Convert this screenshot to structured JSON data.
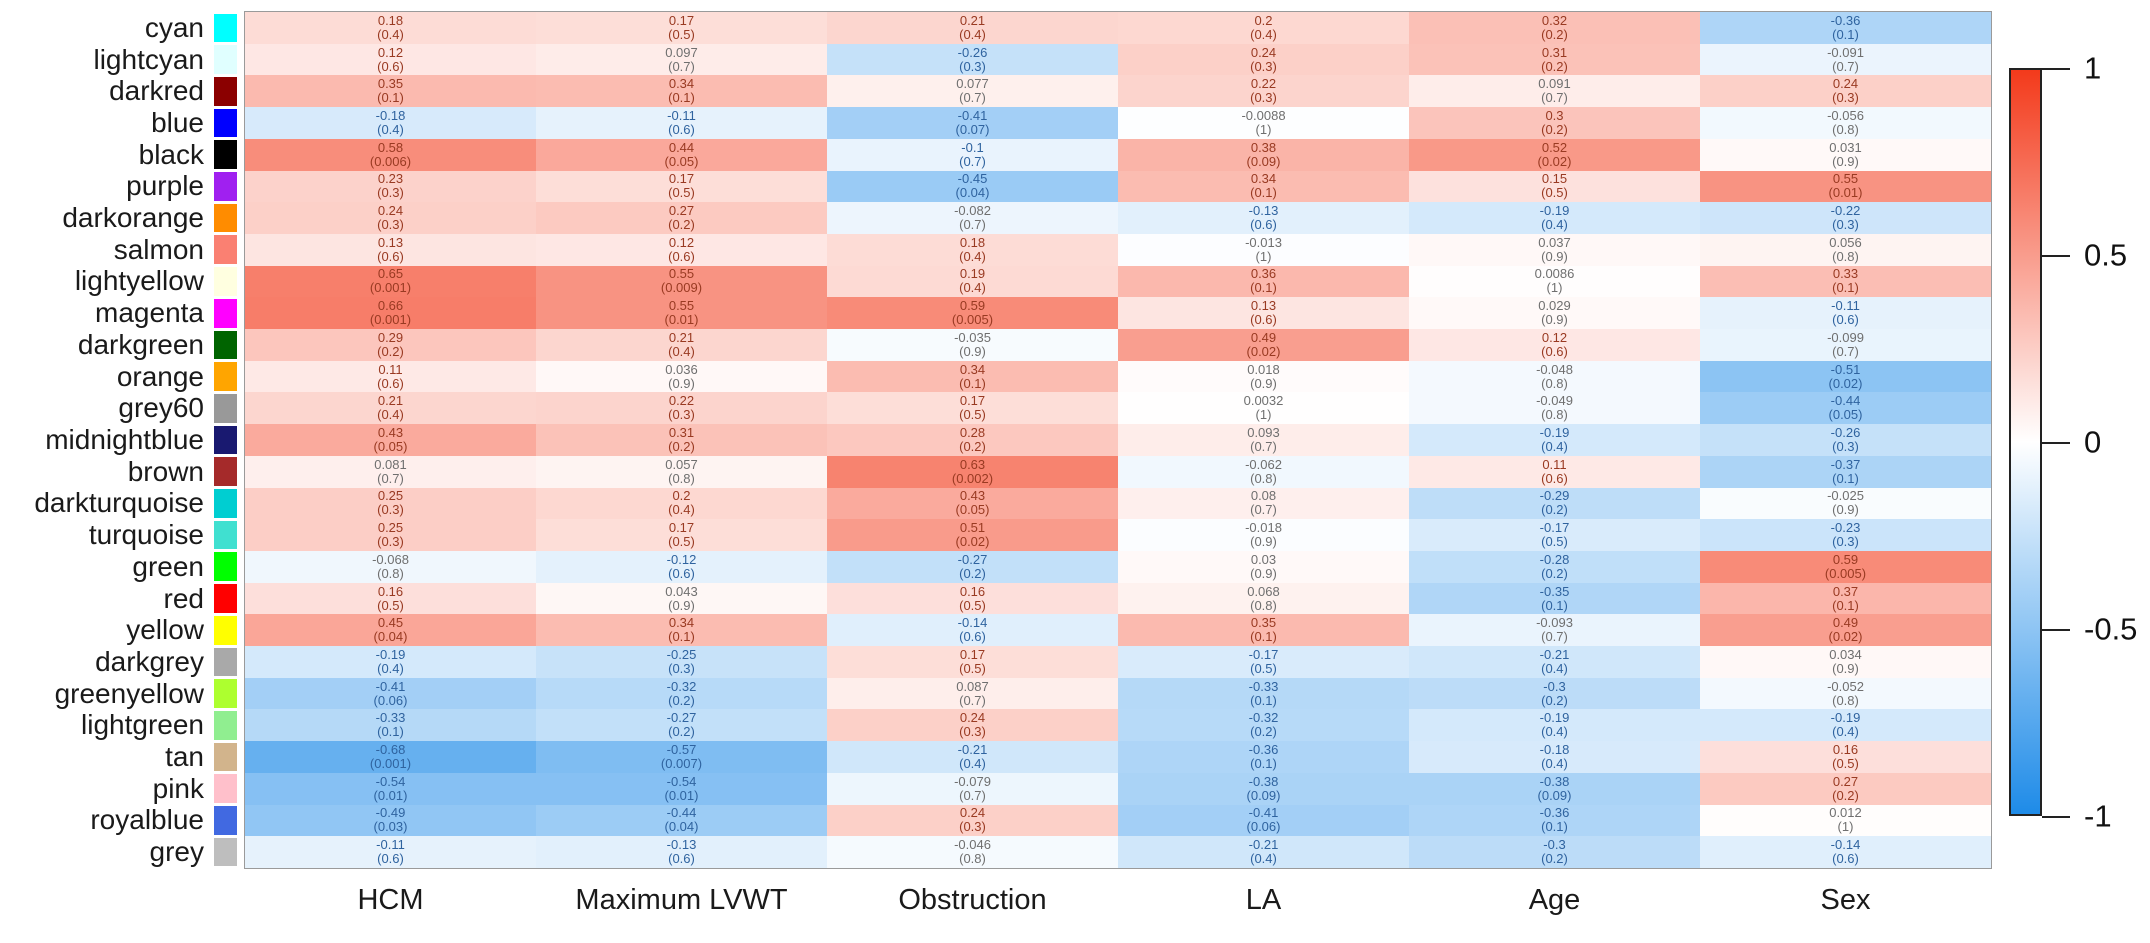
{
  "chart_data": {
    "type": "heatmap",
    "title": "",
    "xlabel": "",
    "ylabel": "",
    "columns": [
      "HCM",
      "Maximum LVWT",
      "Obstruction",
      "LA",
      "Age",
      "Sex"
    ],
    "legend": {
      "ticks": [
        "1",
        "0.5",
        "0",
        "-0.5",
        "-1"
      ],
      "tick_values": [
        1,
        0.5,
        0,
        -0.5,
        -1
      ],
      "position": "right"
    },
    "colorscale": {
      "max_color": "#F33A1B",
      "zero_color": "#FFFFFF",
      "min_color": "#1E8BE8",
      "range": [
        -1,
        1
      ]
    },
    "cell_text_colors": {
      "positive": "#993A22",
      "negative": "#2F639F",
      "near_zero": "#6F6F6F"
    },
    "rows": [
      {
        "module": "cyan",
        "swatch": "#00FFFF",
        "corr": [
          "0.18",
          "0.17",
          "0.21",
          "0.2",
          "0.32",
          "-0.36"
        ],
        "pval": [
          "(0.4)",
          "(0.5)",
          "(0.4)",
          "(0.4)",
          "(0.2)",
          "(0.1)"
        ]
      },
      {
        "module": "lightcyan",
        "swatch": "#E0FFFF",
        "corr": [
          "0.12",
          "0.097",
          "-0.26",
          "0.24",
          "0.31",
          "-0.091"
        ],
        "pval": [
          "(0.6)",
          "(0.7)",
          "(0.3)",
          "(0.3)",
          "(0.2)",
          "(0.7)"
        ]
      },
      {
        "module": "darkred",
        "swatch": "#8B0000",
        "corr": [
          "0.35",
          "0.34",
          "0.077",
          "0.22",
          "0.091",
          "0.24"
        ],
        "pval": [
          "(0.1)",
          "(0.1)",
          "(0.7)",
          "(0.3)",
          "(0.7)",
          "(0.3)"
        ]
      },
      {
        "module": "blue",
        "swatch": "#0000FF",
        "corr": [
          "-0.18",
          "-0.11",
          "-0.41",
          "-0.0088",
          "0.3",
          "-0.056"
        ],
        "pval": [
          "(0.4)",
          "(0.6)",
          "(0.07)",
          "(1)",
          "(0.2)",
          "(0.8)"
        ]
      },
      {
        "module": "black",
        "swatch": "#000000",
        "corr": [
          "0.58",
          "0.44",
          "-0.1",
          "0.38",
          "0.52",
          "0.031"
        ],
        "pval": [
          "(0.006)",
          "(0.05)",
          "(0.7)",
          "(0.09)",
          "(0.02)",
          "(0.9)"
        ]
      },
      {
        "module": "purple",
        "swatch": "#A020F0",
        "corr": [
          "0.23",
          "0.17",
          "-0.45",
          "0.34",
          "0.15",
          "0.55"
        ],
        "pval": [
          "(0.3)",
          "(0.5)",
          "(0.04)",
          "(0.1)",
          "(0.5)",
          "(0.01)"
        ]
      },
      {
        "module": "darkorange",
        "swatch": "#FF8C00",
        "corr": [
          "0.24",
          "0.27",
          "-0.082",
          "-0.13",
          "-0.19",
          "-0.22"
        ],
        "pval": [
          "(0.3)",
          "(0.2)",
          "(0.7)",
          "(0.6)",
          "(0.4)",
          "(0.3)"
        ]
      },
      {
        "module": "salmon",
        "swatch": "#FA8072",
        "corr": [
          "0.13",
          "0.12",
          "0.18",
          "-0.013",
          "0.037",
          "0.056"
        ],
        "pval": [
          "(0.6)",
          "(0.6)",
          "(0.4)",
          "(1)",
          "(0.9)",
          "(0.8)"
        ]
      },
      {
        "module": "lightyellow",
        "swatch": "#FFFFE0",
        "corr": [
          "0.65",
          "0.55",
          "0.19",
          "0.36",
          "0.0086",
          "0.33"
        ],
        "pval": [
          "(0.001)",
          "(0.009)",
          "(0.4)",
          "(0.1)",
          "(1)",
          "(0.1)"
        ]
      },
      {
        "module": "magenta",
        "swatch": "#FF00FF",
        "corr": [
          "0.66",
          "0.55",
          "0.59",
          "0.13",
          "0.029",
          "-0.11"
        ],
        "pval": [
          "(0.001)",
          "(0.01)",
          "(0.005)",
          "(0.6)",
          "(0.9)",
          "(0.6)"
        ]
      },
      {
        "module": "darkgreen",
        "swatch": "#006400",
        "corr": [
          "0.29",
          "0.21",
          "-0.035",
          "0.49",
          "0.12",
          "-0.099"
        ],
        "pval": [
          "(0.2)",
          "(0.4)",
          "(0.9)",
          "(0.02)",
          "(0.6)",
          "(0.7)"
        ]
      },
      {
        "module": "orange",
        "swatch": "#FFA500",
        "corr": [
          "0.11",
          "0.036",
          "0.34",
          "0.018",
          "-0.048",
          "-0.51"
        ],
        "pval": [
          "(0.6)",
          "(0.9)",
          "(0.1)",
          "(0.9)",
          "(0.8)",
          "(0.02)"
        ]
      },
      {
        "module": "grey60",
        "swatch": "#999999",
        "corr": [
          "0.21",
          "0.22",
          "0.17",
          "0.0032",
          "-0.049",
          "-0.44"
        ],
        "pval": [
          "(0.4)",
          "(0.3)",
          "(0.5)",
          "(1)",
          "(0.8)",
          "(0.05)"
        ]
      },
      {
        "module": "midnightblue",
        "swatch": "#191970",
        "corr": [
          "0.43",
          "0.31",
          "0.28",
          "0.093",
          "-0.19",
          "-0.26"
        ],
        "pval": [
          "(0.05)",
          "(0.2)",
          "(0.2)",
          "(0.7)",
          "(0.4)",
          "(0.3)"
        ]
      },
      {
        "module": "brown",
        "swatch": "#A52A2A",
        "corr": [
          "0.081",
          "0.057",
          "0.63",
          "-0.062",
          "0.11",
          "-0.37"
        ],
        "pval": [
          "(0.7)",
          "(0.8)",
          "(0.002)",
          "(0.8)",
          "(0.6)",
          "(0.1)"
        ]
      },
      {
        "module": "darkturquoise",
        "swatch": "#00CED1",
        "corr": [
          "0.25",
          "0.2",
          "0.43",
          "0.08",
          "-0.29",
          "-0.025"
        ],
        "pval": [
          "(0.3)",
          "(0.4)",
          "(0.05)",
          "(0.7)",
          "(0.2)",
          "(0.9)"
        ]
      },
      {
        "module": "turquoise",
        "swatch": "#40E0D0",
        "corr": [
          "0.25",
          "0.17",
          "0.51",
          "-0.018",
          "-0.17",
          "-0.23"
        ],
        "pval": [
          "(0.3)",
          "(0.5)",
          "(0.02)",
          "(0.9)",
          "(0.5)",
          "(0.3)"
        ]
      },
      {
        "module": "green",
        "swatch": "#00FF00",
        "corr": [
          "-0.068",
          "-0.12",
          "-0.27",
          "0.03",
          "-0.28",
          "0.59"
        ],
        "pval": [
          "(0.8)",
          "(0.6)",
          "(0.2)",
          "(0.9)",
          "(0.2)",
          "(0.005)"
        ]
      },
      {
        "module": "red",
        "swatch": "#FF0000",
        "corr": [
          "0.16",
          "0.043",
          "0.16",
          "0.068",
          "-0.35",
          "0.37"
        ],
        "pval": [
          "(0.5)",
          "(0.9)",
          "(0.5)",
          "(0.8)",
          "(0.1)",
          "(0.1)"
        ]
      },
      {
        "module": "yellow",
        "swatch": "#FFFF00",
        "corr": [
          "0.45",
          "0.34",
          "-0.14",
          "0.35",
          "-0.093",
          "0.49"
        ],
        "pval": [
          "(0.04)",
          "(0.1)",
          "(0.6)",
          "(0.1)",
          "(0.7)",
          "(0.02)"
        ]
      },
      {
        "module": "darkgrey",
        "swatch": "#A9A9A9",
        "corr": [
          "-0.19",
          "-0.25",
          "0.17",
          "-0.17",
          "-0.21",
          "0.034"
        ],
        "pval": [
          "(0.4)",
          "(0.3)",
          "(0.5)",
          "(0.5)",
          "(0.4)",
          "(0.9)"
        ]
      },
      {
        "module": "greenyellow",
        "swatch": "#ADFF2F",
        "corr": [
          "-0.41",
          "-0.32",
          "0.087",
          "-0.33",
          "-0.3",
          "-0.052"
        ],
        "pval": [
          "(0.06)",
          "(0.2)",
          "(0.7)",
          "(0.1)",
          "(0.2)",
          "(0.8)"
        ]
      },
      {
        "module": "lightgreen",
        "swatch": "#90EE90",
        "corr": [
          "-0.33",
          "-0.27",
          "0.24",
          "-0.32",
          "-0.19",
          "-0.19"
        ],
        "pval": [
          "(0.1)",
          "(0.2)",
          "(0.3)",
          "(0.2)",
          "(0.4)",
          "(0.4)"
        ]
      },
      {
        "module": "tan",
        "swatch": "#D2B48C",
        "corr": [
          "-0.68",
          "-0.57",
          "-0.21",
          "-0.36",
          "-0.18",
          "0.16"
        ],
        "pval": [
          "(0.001)",
          "(0.007)",
          "(0.4)",
          "(0.1)",
          "(0.4)",
          "(0.5)"
        ]
      },
      {
        "module": "pink",
        "swatch": "#FFC0CB",
        "corr": [
          "-0.54",
          "-0.54",
          "-0.079",
          "-0.38",
          "-0.38",
          "0.27"
        ],
        "pval": [
          "(0.01)",
          "(0.01)",
          "(0.7)",
          "(0.09)",
          "(0.09)",
          "(0.2)"
        ]
      },
      {
        "module": "royalblue",
        "swatch": "#4169E1",
        "corr": [
          "-0.49",
          "-0.44",
          "0.24",
          "-0.41",
          "-0.36",
          "0.012"
        ],
        "pval": [
          "(0.03)",
          "(0.04)",
          "(0.3)",
          "(0.06)",
          "(0.1)",
          "(1)"
        ]
      },
      {
        "module": "grey",
        "swatch": "#BEBEBE",
        "corr": [
          "-0.11",
          "-0.13",
          "-0.046",
          "-0.21",
          "-0.3",
          "-0.14"
        ],
        "pval": [
          "(0.6)",
          "(0.6)",
          "(0.8)",
          "(0.4)",
          "(0.2)",
          "(0.6)"
        ]
      }
    ]
  }
}
